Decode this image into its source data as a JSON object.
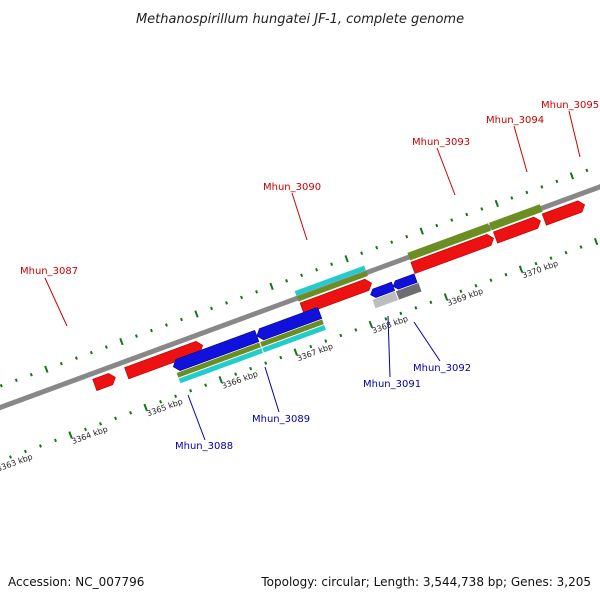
{
  "title": "Methanospirillum hungatei JF-1, complete genome",
  "footer": {
    "accession": "Accession: NC_007796",
    "topology": "Topology: circular; Length: 3,544,738 bp; Genes: 3,205"
  },
  "colors": {
    "forward_label": "#cc0000",
    "reverse_label": "#0000aa",
    "cds_red": "#ee1111",
    "cds_blue": "#1111dd",
    "olive": "#6b8e23",
    "cyan": "#22cccc",
    "gray": "#777777",
    "tick": "#117711",
    "backbone": "#888888"
  },
  "tick_labels": [
    "3363 kbp",
    "3364 kbp",
    "3365 kbp",
    "3366 kbp",
    "3367 kbp",
    "3368 kbp",
    "3369 kbp",
    "3370 kbp"
  ],
  "genes": {
    "forward": [
      "Mhun_3087",
      "Mhun_3090",
      "Mhun_3093",
      "Mhun_3094",
      "Mhun_3095"
    ],
    "reverse": [
      "Mhun_3088",
      "Mhun_3089",
      "Mhun_3091",
      "Mhun_3092"
    ]
  }
}
